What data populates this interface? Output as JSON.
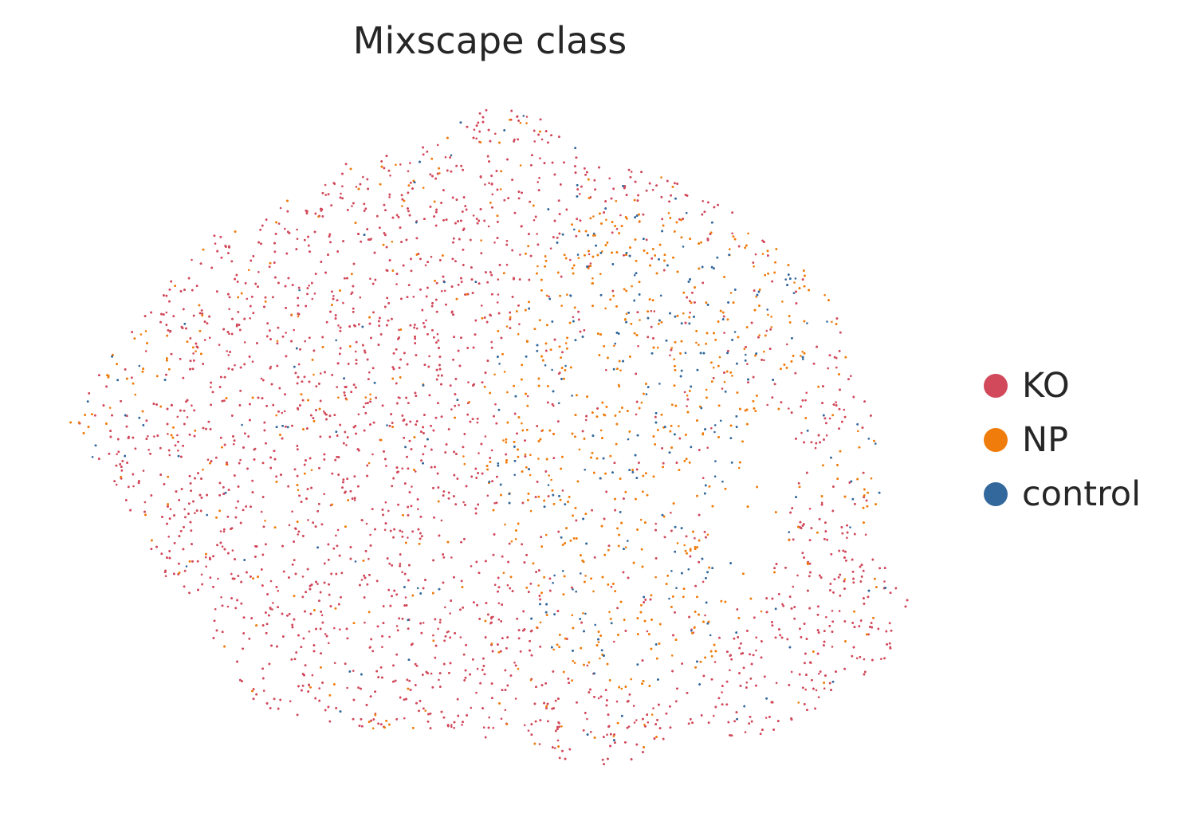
{
  "title": "Mixscape class",
  "legend": {
    "items": [
      {
        "label": "KO",
        "color": "#d1495b"
      },
      {
        "label": "NP",
        "color": "#f07c0c"
      },
      {
        "label": "control",
        "color": "#33689c"
      }
    ]
  },
  "chart_data": {
    "type": "scatter",
    "title": "Mixscape class",
    "xlabel": "",
    "ylabel": "",
    "axes_visible": false,
    "grid": false,
    "legend_position": "right",
    "point_size": "tiny",
    "series": [
      {
        "name": "KO",
        "color": "#d1495b",
        "relative_share": 0.6
      },
      {
        "name": "NP",
        "color": "#f07c0c",
        "relative_share": 0.3
      },
      {
        "name": "control",
        "color": "#33689c",
        "relative_share": 0.1
      }
    ]
  }
}
